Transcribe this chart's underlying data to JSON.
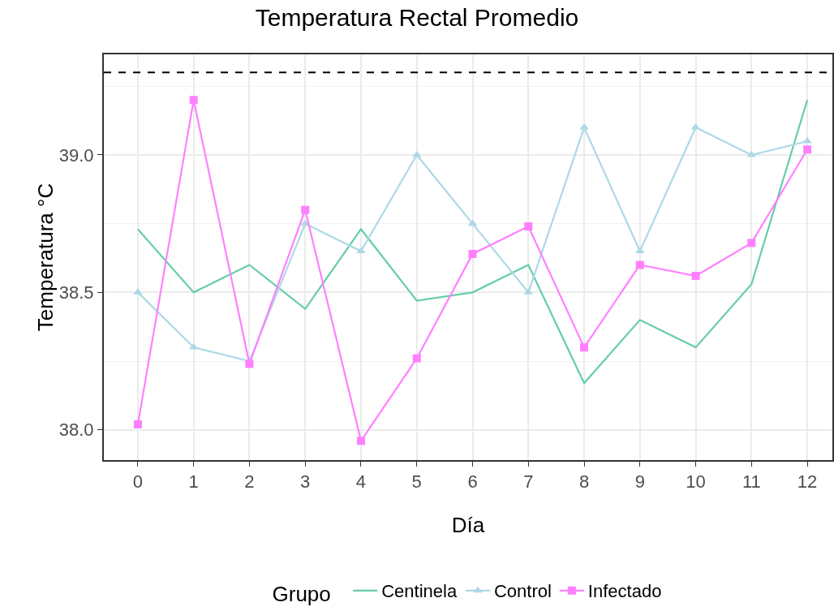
{
  "chart_data": {
    "type": "line",
    "title": "Temperatura Rectal Promedio",
    "xlabel": "Día",
    "ylabel": "Temperatura °C",
    "legend_title": "Grupo",
    "legend": "bottom",
    "grid": true,
    "x": [
      0,
      1,
      2,
      3,
      4,
      5,
      6,
      7,
      8,
      9,
      10,
      11,
      12
    ],
    "xlim": [
      -0.61,
      12.45
    ],
    "xticks": [
      0,
      1,
      2,
      3,
      4,
      5,
      6,
      7,
      8,
      9,
      10,
      11,
      12
    ],
    "ylim": [
      37.89,
      39.366
    ],
    "yticks": [
      {
        "value": 38,
        "label": "38.0"
      },
      {
        "value": 38.5,
        "label": "38.5"
      },
      {
        "value": 39,
        "label": "39.0"
      }
    ],
    "series": [
      {
        "name": "Centinela",
        "color": "#66cdaa",
        "marker": "none",
        "values": [
          38.73,
          38.5,
          38.6,
          38.44,
          38.73,
          38.47,
          38.5,
          38.6,
          38.17,
          38.4,
          38.3,
          38.53,
          39.2
        ]
      },
      {
        "name": "Control",
        "color": "#add8e6",
        "marker": "triangle",
        "values": [
          38.5,
          38.3,
          38.25,
          38.75,
          38.65,
          39.0,
          38.75,
          38.5,
          39.1,
          38.65,
          39.1,
          39.0,
          39.05
        ]
      },
      {
        "name": "Infectado",
        "color": "#ff80ff",
        "marker": "square",
        "values": [
          38.02,
          39.2,
          38.24,
          38.8,
          37.96,
          38.26,
          38.64,
          38.74,
          38.3,
          38.6,
          38.56,
          38.68,
          39.02
        ]
      }
    ],
    "ref_lines": [
      {
        "axis": "y",
        "value": 39.3,
        "color": "#000000",
        "line_style": "dashed"
      }
    ]
  }
}
